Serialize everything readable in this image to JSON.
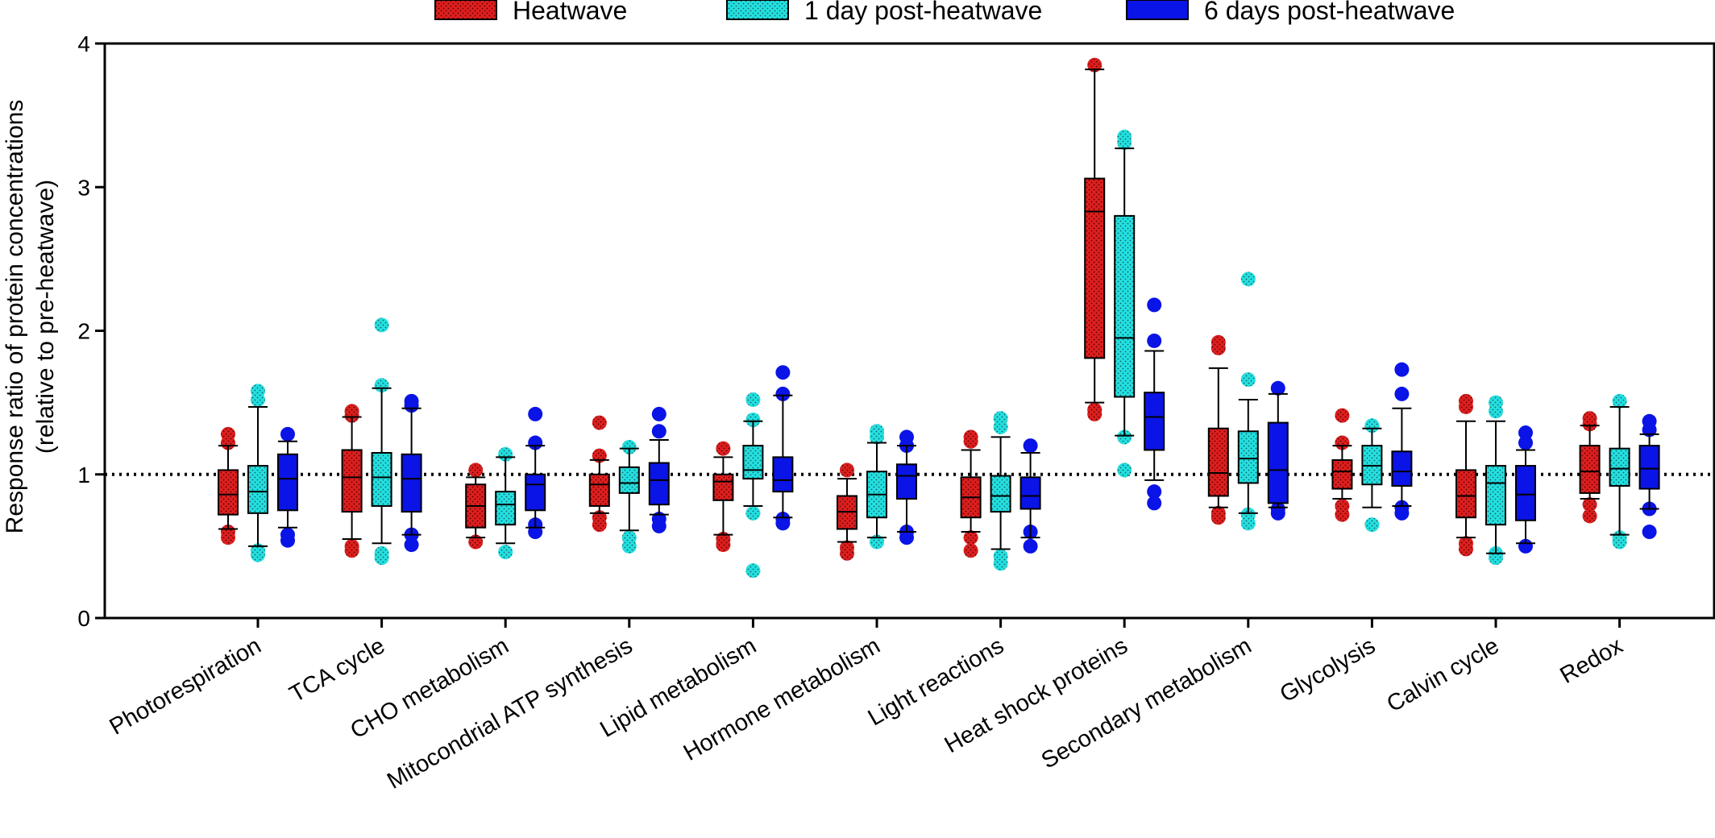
{
  "chart_data": {
    "type": "box",
    "ylabel_line1": "Response ratio of protein concentrations",
    "ylabel_line2": "(relative to pre-heatwave)",
    "ylim": [
      0,
      4
    ],
    "yticks": [
      "0",
      "1",
      "2",
      "3",
      "4"
    ],
    "reference_line": 1,
    "legend_position": "top-center",
    "categories": [
      "Photorespiration",
      "TCA cycle",
      "CHO metabolism",
      "Mitocondrial ATP synthesis",
      "Lipid metabolism",
      "Hormone metabolism",
      "Light reactions",
      "Heat shock proteins",
      "Secondary metabolism",
      "Glycolysis",
      "Calvin cycle",
      "Redox"
    ],
    "series": [
      {
        "name": "Heatwave",
        "color": "#dd1f1f",
        "pattern": "dotted-red",
        "boxes": [
          {
            "whisker_low": 0.62,
            "q1": 0.72,
            "median": 0.86,
            "q3": 1.03,
            "whisker_high": 1.2,
            "outliers": [
              1.28,
              1.22,
              0.6,
              0.56
            ]
          },
          {
            "whisker_low": 0.55,
            "q1": 0.74,
            "median": 0.98,
            "q3": 1.17,
            "whisker_high": 1.4,
            "outliers": [
              1.44,
              1.41,
              0.5,
              0.47
            ]
          },
          {
            "whisker_low": 0.56,
            "q1": 0.63,
            "median": 0.78,
            "q3": 0.93,
            "whisker_high": 0.98,
            "outliers": [
              1.03,
              0.53
            ]
          },
          {
            "whisker_low": 0.73,
            "q1": 0.78,
            "median": 0.93,
            "q3": 1.0,
            "whisker_high": 1.1,
            "outliers": [
              1.36,
              1.13,
              0.7,
              0.65
            ]
          },
          {
            "whisker_low": 0.58,
            "q1": 0.82,
            "median": 0.95,
            "q3": 1.0,
            "whisker_high": 1.12,
            "outliers": [
              1.18,
              0.55,
              0.51
            ]
          },
          {
            "whisker_low": 0.53,
            "q1": 0.62,
            "median": 0.74,
            "q3": 0.85,
            "whisker_high": 0.97,
            "outliers": [
              1.03,
              0.49,
              0.45
            ]
          },
          {
            "whisker_low": 0.6,
            "q1": 0.7,
            "median": 0.84,
            "q3": 0.98,
            "whisker_high": 1.17,
            "outliers": [
              1.26,
              1.23,
              0.56,
              0.47
            ]
          },
          {
            "whisker_low": 1.5,
            "q1": 1.81,
            "median": 2.83,
            "q3": 3.06,
            "whisker_high": 3.82,
            "outliers": [
              3.85,
              1.45,
              1.42
            ]
          },
          {
            "whisker_low": 0.77,
            "q1": 0.85,
            "median": 1.01,
            "q3": 1.32,
            "whisker_high": 1.74,
            "outliers": [
              1.92,
              1.88,
              0.73,
              0.7
            ]
          },
          {
            "whisker_low": 0.83,
            "q1": 0.9,
            "median": 1.02,
            "q3": 1.1,
            "whisker_high": 1.2,
            "outliers": [
              1.41,
              1.22,
              0.78,
              0.72
            ]
          },
          {
            "whisker_low": 0.56,
            "q1": 0.7,
            "median": 0.85,
            "q3": 1.03,
            "whisker_high": 1.37,
            "outliers": [
              1.51,
              1.47,
              0.52,
              0.48
            ]
          },
          {
            "whisker_low": 0.83,
            "q1": 0.87,
            "median": 1.02,
            "q3": 1.2,
            "whisker_high": 1.34,
            "outliers": [
              1.39,
              1.35,
              0.79,
              0.71
            ]
          }
        ]
      },
      {
        "name": "1 day post-heatwave",
        "color": "#23e0e0",
        "pattern": "dotted-cyan",
        "boxes": [
          {
            "whisker_low": 0.5,
            "q1": 0.73,
            "median": 0.88,
            "q3": 1.06,
            "whisker_high": 1.47,
            "outliers": [
              1.58,
              1.52,
              0.47,
              0.44
            ]
          },
          {
            "whisker_low": 0.52,
            "q1": 0.78,
            "median": 0.98,
            "q3": 1.15,
            "whisker_high": 1.6,
            "outliers": [
              2.04,
              1.62,
              0.45,
              0.42
            ]
          },
          {
            "whisker_low": 0.52,
            "q1": 0.65,
            "median": 0.79,
            "q3": 0.88,
            "whisker_high": 1.12,
            "outliers": [
              1.14,
              0.46
            ]
          },
          {
            "whisker_low": 0.61,
            "q1": 0.87,
            "median": 0.94,
            "q3": 1.05,
            "whisker_high": 1.18,
            "outliers": [
              1.19,
              0.56,
              0.5
            ]
          },
          {
            "whisker_low": 0.78,
            "q1": 0.97,
            "median": 1.03,
            "q3": 1.2,
            "whisker_high": 1.37,
            "outliers": [
              1.52,
              1.38,
              0.73,
              0.33
            ]
          },
          {
            "whisker_low": 0.56,
            "q1": 0.7,
            "median": 0.86,
            "q3": 1.02,
            "whisker_high": 1.22,
            "outliers": [
              1.3,
              1.26,
              0.53
            ]
          },
          {
            "whisker_low": 0.48,
            "q1": 0.74,
            "median": 0.85,
            "q3": 0.99,
            "whisker_high": 1.26,
            "outliers": [
              1.39,
              1.33,
              0.43,
              0.38
            ]
          },
          {
            "whisker_low": 1.27,
            "q1": 1.54,
            "median": 1.95,
            "q3": 2.8,
            "whisker_high": 3.27,
            "outliers": [
              3.35,
              3.31,
              1.26,
              1.03
            ]
          },
          {
            "whisker_low": 0.73,
            "q1": 0.94,
            "median": 1.11,
            "q3": 1.3,
            "whisker_high": 1.52,
            "outliers": [
              2.36,
              1.66,
              0.72,
              0.66
            ]
          },
          {
            "whisker_low": 0.77,
            "q1": 0.93,
            "median": 1.06,
            "q3": 1.2,
            "whisker_high": 1.32,
            "outliers": [
              1.34,
              0.65
            ]
          },
          {
            "whisker_low": 0.45,
            "q1": 0.65,
            "median": 0.94,
            "q3": 1.06,
            "whisker_high": 1.37,
            "outliers": [
              1.5,
              1.44,
              0.45,
              0.42
            ]
          },
          {
            "whisker_low": 0.58,
            "q1": 0.92,
            "median": 1.04,
            "q3": 1.18,
            "whisker_high": 1.47,
            "outliers": [
              1.51,
              0.56,
              0.53
            ]
          }
        ]
      },
      {
        "name": "6 days post-heatwave",
        "color": "#0a14e6",
        "pattern": "solid",
        "boxes": [
          {
            "whisker_low": 0.63,
            "q1": 0.75,
            "median": 0.97,
            "q3": 1.14,
            "whisker_high": 1.23,
            "outliers": [
              1.28,
              0.58,
              0.54
            ]
          },
          {
            "whisker_low": 0.58,
            "q1": 0.74,
            "median": 0.97,
            "q3": 1.14,
            "whisker_high": 1.46,
            "outliers": [
              1.51,
              1.48,
              0.58,
              0.51
            ]
          },
          {
            "whisker_low": 0.63,
            "q1": 0.75,
            "median": 0.93,
            "q3": 1.0,
            "whisker_high": 1.2,
            "outliers": [
              1.42,
              1.22,
              0.65,
              0.6
            ]
          },
          {
            "whisker_low": 0.72,
            "q1": 0.79,
            "median": 0.96,
            "q3": 1.08,
            "whisker_high": 1.24,
            "outliers": [
              1.42,
              1.3,
              0.69,
              0.64
            ]
          },
          {
            "whisker_low": 0.7,
            "q1": 0.88,
            "median": 0.96,
            "q3": 1.12,
            "whisker_high": 1.55,
            "outliers": [
              1.71,
              1.56,
              0.69,
              0.66
            ]
          },
          {
            "whisker_low": 0.6,
            "q1": 0.83,
            "median": 0.99,
            "q3": 1.07,
            "whisker_high": 1.2,
            "outliers": [
              1.26,
              1.2,
              0.6,
              0.56
            ]
          },
          {
            "whisker_low": 0.56,
            "q1": 0.76,
            "median": 0.85,
            "q3": 0.98,
            "whisker_high": 1.15,
            "outliers": [
              1.2,
              0.6,
              0.5
            ]
          },
          {
            "whisker_low": 0.96,
            "q1": 1.17,
            "median": 1.4,
            "q3": 1.57,
            "whisker_high": 1.86,
            "outliers": [
              2.18,
              1.93,
              0.88,
              0.8
            ]
          },
          {
            "whisker_low": 0.77,
            "q1": 0.8,
            "median": 1.03,
            "q3": 1.36,
            "whisker_high": 1.56,
            "outliers": [
              1.6,
              0.76,
              0.73
            ]
          },
          {
            "whisker_low": 0.78,
            "q1": 0.92,
            "median": 1.02,
            "q3": 1.16,
            "whisker_high": 1.46,
            "outliers": [
              1.73,
              1.56,
              0.77,
              0.73
            ]
          },
          {
            "whisker_low": 0.52,
            "q1": 0.68,
            "median": 0.86,
            "q3": 1.06,
            "whisker_high": 1.17,
            "outliers": [
              1.29,
              1.22,
              0.5
            ]
          },
          {
            "whisker_low": 0.76,
            "q1": 0.9,
            "median": 1.04,
            "q3": 1.2,
            "whisker_high": 1.28,
            "outliers": [
              1.37,
              1.31,
              0.76,
              0.6
            ]
          }
        ]
      }
    ]
  }
}
